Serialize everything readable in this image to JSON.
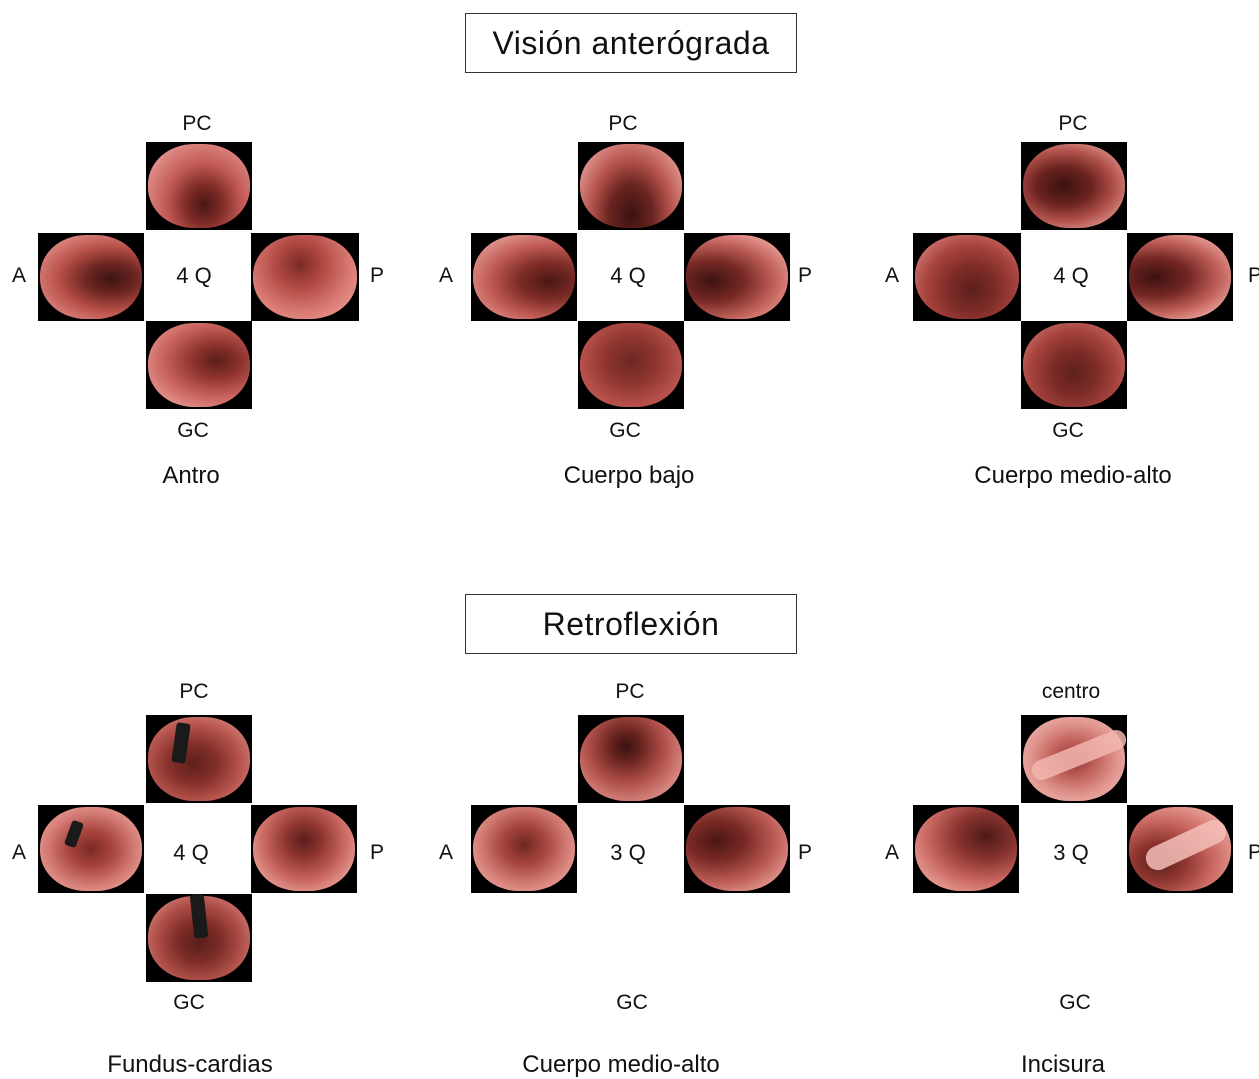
{
  "sections": [
    {
      "title": "Visión anterógrada",
      "panels": [
        {
          "caption": "Antro",
          "top": "PC",
          "bottom": "GC",
          "left": "A",
          "right": "P",
          "center": "4 Q",
          "views": [
            "antrum-superior-view",
            "antrum-left-view",
            "antrum-right-view",
            "antrum-inferior-view"
          ]
        },
        {
          "caption": "Cuerpo bajo",
          "top": "PC",
          "bottom": "GC",
          "left": "A",
          "right": "P",
          "center": "4 Q",
          "views": [
            "lower-body-superior-view",
            "lower-body-left-view",
            "lower-body-right-view",
            "lower-body-inferior-view"
          ]
        },
        {
          "caption": "Cuerpo medio-alto",
          "top": "PC",
          "bottom": "GC",
          "left": "A",
          "right": "P",
          "center": "4 Q",
          "views": [
            "mid-upper-body-superior-view",
            "mid-upper-body-left-view",
            "mid-upper-body-right-view",
            "mid-upper-body-inferior-view"
          ]
        }
      ]
    },
    {
      "title": "Retroflexión",
      "panels": [
        {
          "caption": "Fundus-cardias",
          "top": "PC",
          "bottom": "GC",
          "left": "A",
          "right": "P",
          "center": "4 Q",
          "views": [
            "fundus-superior-view",
            "fundus-left-view",
            "fundus-right-view",
            "fundus-inferior-view"
          ]
        },
        {
          "caption": "Cuerpo medio-alto",
          "top": "PC",
          "bottom": "GC",
          "left": "A",
          "right": "P",
          "center": "3 Q",
          "views": [
            "retro-body-superior-view",
            "retro-body-left-view",
            "retro-body-right-view"
          ]
        },
        {
          "caption": "Incisura",
          "top": "centro",
          "bottom": "GC",
          "left": "A",
          "right": "P",
          "center": "3 Q",
          "views": [
            "incisura-superior-view",
            "incisura-left-view",
            "incisura-right-view"
          ]
        }
      ]
    }
  ]
}
